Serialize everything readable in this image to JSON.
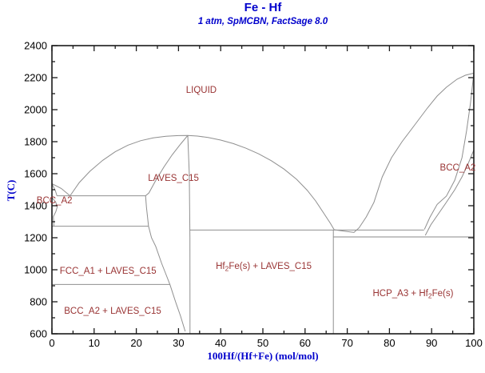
{
  "header": {
    "title": "Fe - Hf",
    "subtitle": "1 atm, SpMCBN, FactSage 8.0"
  },
  "chart_data": {
    "type": "line",
    "title": "Fe - Hf",
    "subtitle": "1 atm, SpMCBN, FactSage 8.0",
    "xlabel": "100Hf/(Hf+Fe) (mol/mol)",
    "ylabel": "T(C)",
    "xlim": [
      0,
      100
    ],
    "ylim": [
      600,
      2400
    ],
    "grid": false,
    "legend": "none",
    "colors": {
      "frame": "#1a1a1a",
      "line": "#8f8f8f",
      "light_line": "#bcbcbc",
      "region_label": "#993333",
      "accent": "#0000cc",
      "tick_label": "#000000"
    },
    "axes": {
      "x": {
        "label": "100Hf/(Hf+Fe) (mol/mol)",
        "min": 0,
        "max": 100,
        "major": [
          0,
          10,
          20,
          30,
          40,
          50,
          60,
          70,
          80,
          90,
          100
        ],
        "minor": [
          5,
          15,
          25,
          35,
          45,
          55,
          65,
          75,
          85,
          95
        ]
      },
      "y": {
        "label": "T(C)",
        "min": 600,
        "max": 2400,
        "major": [
          600,
          800,
          1000,
          1200,
          1400,
          1600,
          1800,
          2000,
          2200,
          2400
        ],
        "minor": [
          700,
          900,
          1100,
          1300,
          1500,
          1700,
          1900,
          2100,
          2300
        ]
      }
    },
    "curves": [
      {
        "name": "liquidus-fe",
        "points": [
          [
            0,
            1538
          ],
          [
            2.2,
            1508
          ],
          [
            4.3,
            1462
          ]
        ]
      },
      {
        "name": "solidus-fe",
        "points": [
          [
            0,
            1538
          ],
          [
            0.8,
            1495
          ],
          [
            1.2,
            1462
          ]
        ]
      },
      {
        "name": "gamma-loop",
        "points": [
          [
            0.05,
            1450
          ],
          [
            0.9,
            1422
          ],
          [
            1.25,
            1392
          ],
          [
            0.9,
            1362
          ],
          [
            0.35,
            1332
          ],
          [
            0.42,
            1300
          ],
          [
            0.48,
            1272
          ]
        ]
      },
      {
        "name": "eutectic-isotherm-fe",
        "points": [
          [
            1.2,
            1462
          ],
          [
            22.2,
            1462
          ]
        ]
      },
      {
        "name": "eutectoid-isotherm-fe",
        "points": [
          [
            0,
            1272
          ],
          [
            22.9,
            1272
          ]
        ]
      },
      {
        "name": "gamma-alpha-isotherm",
        "points": [
          [
            0,
            908
          ],
          [
            28,
            908
          ]
        ]
      },
      {
        "name": "liquidus-dome",
        "points": [
          [
            4.3,
            1462
          ],
          [
            6.5,
            1545
          ],
          [
            9,
            1615
          ],
          [
            12,
            1683
          ],
          [
            15,
            1737
          ],
          [
            18,
            1778
          ],
          [
            21,
            1806
          ],
          [
            24,
            1824
          ],
          [
            27,
            1834
          ],
          [
            30,
            1838
          ],
          [
            32.2,
            1839
          ],
          [
            34.5,
            1835
          ],
          [
            37,
            1826
          ],
          [
            40,
            1810
          ],
          [
            43,
            1788
          ],
          [
            46,
            1759
          ],
          [
            49,
            1724
          ],
          [
            52,
            1681
          ],
          [
            55,
            1629
          ],
          [
            58,
            1565
          ],
          [
            60.5,
            1497
          ],
          [
            62.5,
            1430
          ],
          [
            64.5,
            1350
          ],
          [
            66,
            1290
          ],
          [
            66.9,
            1250
          ]
        ]
      },
      {
        "name": "liquidus-hf",
        "points": [
          [
            66.9,
            1250
          ],
          [
            69.2,
            1241
          ],
          [
            71.6,
            1233
          ],
          [
            72.8,
            1262
          ],
          [
            74.5,
            1330
          ],
          [
            76.3,
            1420
          ],
          [
            78.3,
            1580
          ],
          [
            80.5,
            1700
          ],
          [
            83,
            1800
          ],
          [
            86,
            1905
          ],
          [
            89,
            2010
          ],
          [
            91.3,
            2085
          ],
          [
            93.5,
            2140
          ],
          [
            96,
            2190
          ],
          [
            98,
            2215
          ],
          [
            100,
            2228
          ]
        ]
      },
      {
        "name": "solidus-bcc-hf",
        "points": [
          [
            100,
            2228
          ],
          [
            99.2,
            2040
          ],
          [
            98.3,
            1870
          ],
          [
            97.2,
            1700
          ],
          [
            95.5,
            1560
          ],
          [
            93.5,
            1460
          ],
          [
            91.3,
            1408
          ],
          [
            89.6,
            1328
          ],
          [
            88.3,
            1252
          ]
        ]
      },
      {
        "name": "bcc-hcp-boundary-hf",
        "points": [
          [
            100,
            1748
          ],
          [
            98.7,
            1665
          ],
          [
            97.2,
            1580
          ],
          [
            95.5,
            1500
          ],
          [
            93.4,
            1418
          ],
          [
            91.5,
            1345
          ],
          [
            89.8,
            1280
          ],
          [
            88.5,
            1215
          ]
        ]
      },
      {
        "name": "peritectic-isotherm",
        "points": [
          [
            32.7,
            1248
          ],
          [
            88.2,
            1248
          ]
        ]
      },
      {
        "name": "eutectoid-isotherm-hf",
        "points": [
          [
            66.7,
            1205
          ],
          [
            100,
            1205
          ]
        ],
        "color": "#bcbcbc",
        "width": 1.8
      },
      {
        "name": "hf2fe-compound-line",
        "points": [
          [
            66.7,
            1248
          ],
          [
            66.7,
            600
          ]
        ]
      },
      {
        "name": "laves-right-boundary",
        "points": [
          [
            32.2,
            1839
          ],
          [
            32.55,
            1600
          ],
          [
            32.7,
            1200
          ],
          [
            32.72,
            600
          ]
        ]
      },
      {
        "name": "laves-left-boundary",
        "points": [
          [
            32.2,
            1839
          ],
          [
            30.5,
            1785
          ],
          [
            28.5,
            1718
          ],
          [
            26.5,
            1640
          ],
          [
            24.5,
            1553
          ],
          [
            23,
            1480
          ],
          [
            22.2,
            1462
          ],
          [
            22.4,
            1390
          ],
          [
            22.9,
            1272
          ],
          [
            23.6,
            1200
          ],
          [
            24.6,
            1146
          ],
          [
            26,
            1040
          ],
          [
            27.2,
            960
          ],
          [
            28,
            906
          ],
          [
            29.3,
            800
          ],
          [
            30.5,
            710
          ],
          [
            31.6,
            615
          ]
        ]
      }
    ],
    "region_labels": [
      {
        "name": "liquid",
        "x": 35.4,
        "T": 2125,
        "parts": [
          {
            "t": "LIQUID"
          }
        ]
      },
      {
        "name": "laves-c15",
        "x": 28.8,
        "T": 1575,
        "parts": [
          {
            "t": "LAVES_C15"
          }
        ]
      },
      {
        "name": "bcc-a2-left",
        "x": 0.6,
        "T": 1435,
        "parts": [
          {
            "t": "BCC_A2"
          }
        ]
      },
      {
        "name": "fcc-a1-laves",
        "x": 13.3,
        "T": 995,
        "parts": [
          {
            "t": "FCC_A1 + LAVES_C15"
          }
        ]
      },
      {
        "name": "bcc-a2-laves",
        "x": 14.4,
        "T": 745,
        "parts": [
          {
            "t": "BCC_A2 + LAVES_C15"
          }
        ]
      },
      {
        "name": "hf2fe-laves",
        "x": 50.2,
        "T": 1025,
        "parts": [
          {
            "t": "Hf"
          },
          {
            "t": "2",
            "sub": true
          },
          {
            "t": "Fe(s) + LAVES_C15"
          }
        ]
      },
      {
        "name": "hcp-a3-hf2fe",
        "x": 85.6,
        "T": 855,
        "parts": [
          {
            "t": "HCP_A3 + Hf"
          },
          {
            "t": "2",
            "sub": true
          },
          {
            "t": "Fe(s)"
          }
        ]
      },
      {
        "name": "bcc-a2-right",
        "x": 96.2,
        "T": 1640,
        "parts": [
          {
            "t": "BCC_A2"
          }
        ]
      }
    ]
  }
}
